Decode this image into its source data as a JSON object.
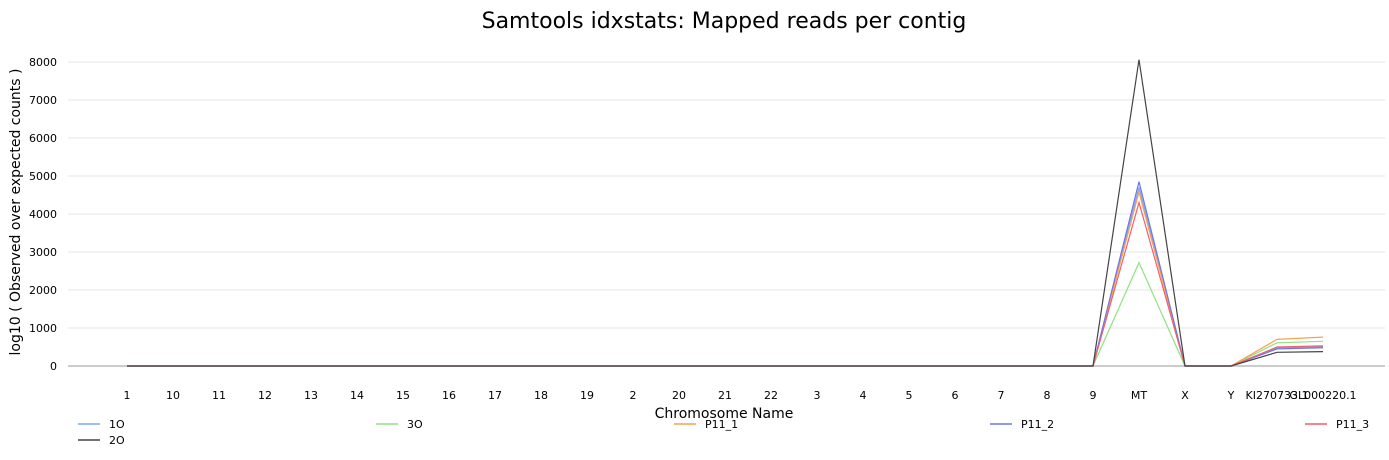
{
  "chart_data": {
    "type": "line",
    "title": "Samtools idxstats: Mapped reads per contig",
    "xlabel": "Chromosome Name",
    "ylabel": "log10 ( Observed over expected counts )",
    "ylim": [
      0,
      8000
    ],
    "yticks": [
      0,
      1000,
      2000,
      3000,
      4000,
      5000,
      6000,
      7000,
      8000
    ],
    "grid": true,
    "legend_position": "bottom",
    "categories": [
      "1",
      "10",
      "11",
      "12",
      "13",
      "14",
      "15",
      "16",
      "17",
      "18",
      "19",
      "2",
      "20",
      "21",
      "22",
      "3",
      "4",
      "5",
      "6",
      "7",
      "8",
      "9",
      "MT",
      "X",
      "Y",
      "KI270733.1",
      "GL000220.1"
    ],
    "series": [
      {
        "name": "1O",
        "color": "#7aa6f2",
        "values": [
          0,
          0,
          0,
          0,
          0,
          0,
          0,
          0,
          0,
          0,
          0,
          0,
          0,
          0,
          0,
          0,
          0,
          0,
          0,
          0,
          0,
          0,
          4700,
          0,
          0,
          480,
          500
        ]
      },
      {
        "name": "3O",
        "color": "#8fe37f",
        "values": [
          0,
          0,
          0,
          0,
          0,
          0,
          0,
          0,
          0,
          0,
          0,
          0,
          0,
          0,
          0,
          0,
          0,
          0,
          0,
          0,
          0,
          0,
          2720,
          0,
          0,
          610,
          650
        ]
      },
      {
        "name": "P11_1",
        "color": "#f5a253",
        "values": [
          0,
          0,
          0,
          0,
          0,
          0,
          0,
          0,
          0,
          0,
          0,
          0,
          0,
          0,
          0,
          0,
          0,
          0,
          0,
          0,
          0,
          0,
          4580,
          0,
          0,
          700,
          760
        ]
      },
      {
        "name": "P11_2",
        "color": "#6b78e6",
        "values": [
          0,
          0,
          0,
          0,
          0,
          0,
          0,
          0,
          0,
          0,
          0,
          0,
          0,
          0,
          0,
          0,
          0,
          0,
          0,
          0,
          0,
          0,
          4850,
          0,
          0,
          450,
          480
        ]
      },
      {
        "name": "P11_3",
        "color": "#ef5f6e",
        "values": [
          0,
          0,
          0,
          0,
          0,
          0,
          0,
          0,
          0,
          0,
          0,
          0,
          0,
          0,
          0,
          0,
          0,
          0,
          0,
          0,
          0,
          0,
          4300,
          0,
          0,
          500,
          530
        ]
      },
      {
        "name": "2O",
        "color": "#434348",
        "values": [
          0,
          0,
          0,
          0,
          0,
          0,
          0,
          0,
          0,
          0,
          0,
          0,
          0,
          0,
          0,
          0,
          0,
          0,
          0,
          0,
          0,
          0,
          8060,
          0,
          0,
          360,
          380
        ]
      }
    ]
  }
}
